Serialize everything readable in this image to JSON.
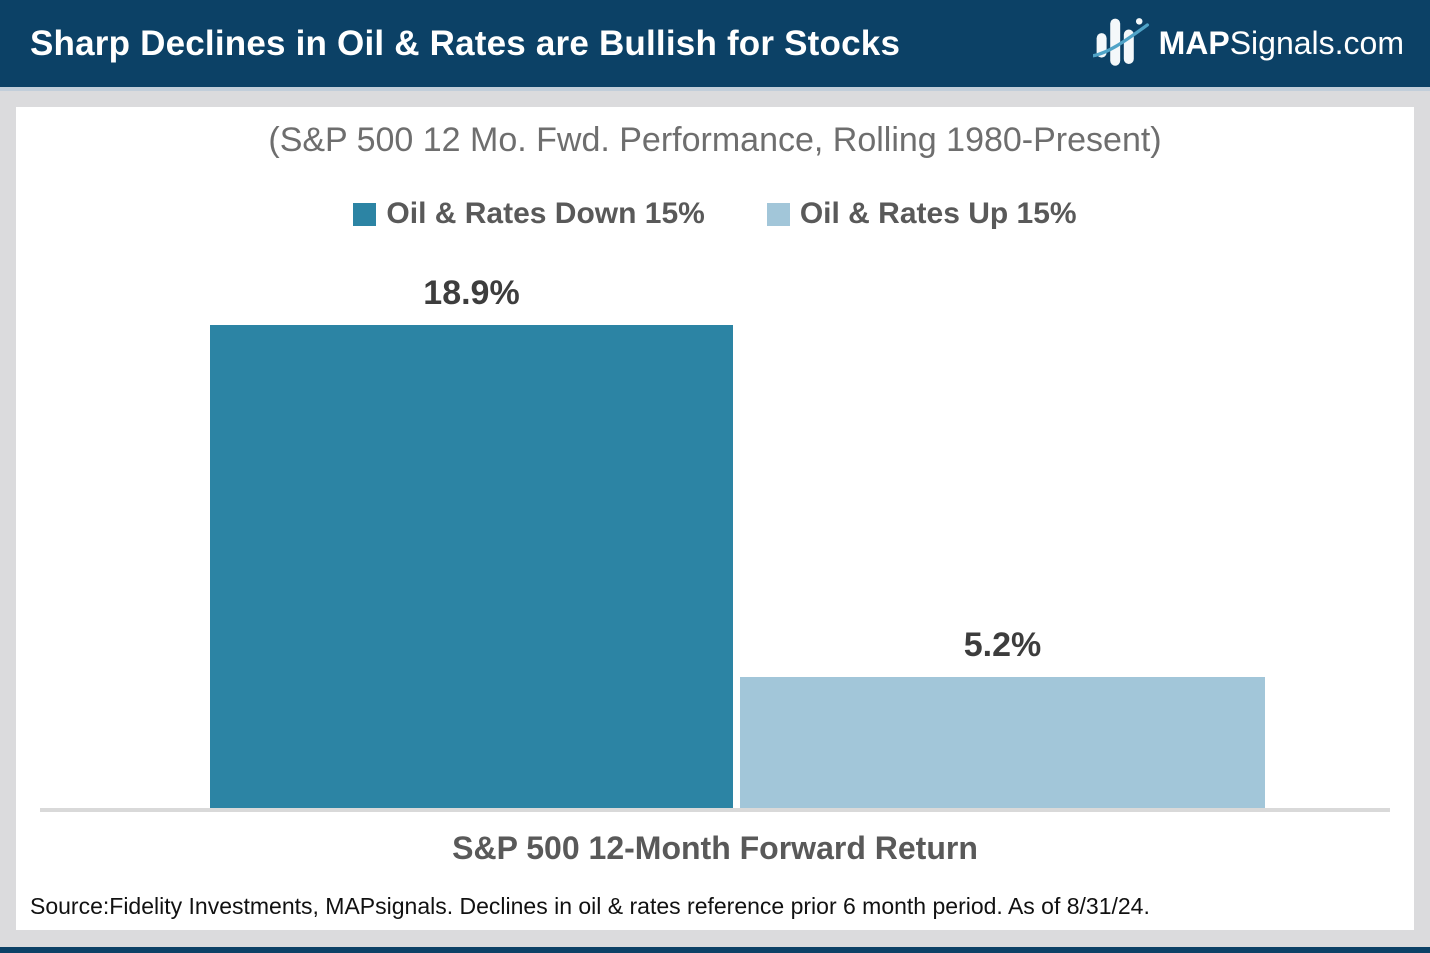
{
  "header": {
    "title": "Sharp Declines in Oil & Rates are Bullish for Stocks",
    "logo": {
      "brand_bold": "MAP",
      "brand_rest": "Signals.com",
      "icon": "mapsignals-bars-icon"
    }
  },
  "chart_data": {
    "type": "bar",
    "title": "(S&P 500 12 Mo. Fwd. Performance, Rolling 1980-Present)",
    "xlabel": "S&P 500 12-Month Forward Return",
    "ylabel": "",
    "categories": [
      "Oil & Rates Down 15%",
      "Oil & Rates Up 15%"
    ],
    "values": [
      18.9,
      5.2
    ],
    "value_labels": [
      "18.9%",
      "5.2%"
    ],
    "bar_colors": [
      "#2c84a4",
      "#a2c6d9"
    ],
    "legend": [
      {
        "label": "Oil & Rates Down 15%",
        "color": "#2c84a4"
      },
      {
        "label": "Oil & Rates Up 15%",
        "color": "#a2c6d9"
      }
    ],
    "legend_position": "top",
    "grid": false,
    "ylim": [
      0,
      20
    ]
  },
  "footer": {
    "source": "Source:Fidelity Investments, MAPsignals. Declines in oil & rates reference prior 6 month period. As of 8/31/24."
  },
  "colors": {
    "header_bg": "#0c4166",
    "header_underline": "#c2ceda",
    "page_bg": "#dbdbdd",
    "card_bg": "#ffffff",
    "baseline": "#d9d9d9",
    "swoosh": "#4fa3c7"
  }
}
